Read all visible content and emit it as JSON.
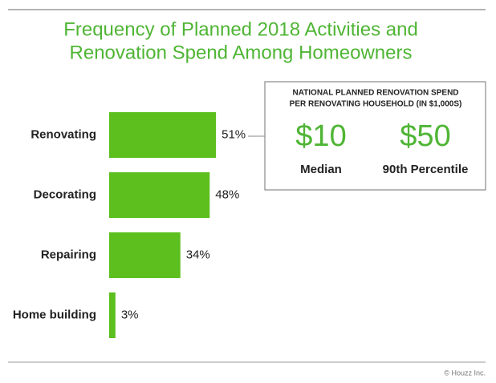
{
  "chart_data": {
    "type": "bar",
    "orientation": "horizontal",
    "title_lines": [
      "Frequency of Planned 2018 Activities and",
      "Renovation Spend Among Homeowners"
    ],
    "categories": [
      "Renovating",
      "Decorating",
      "Repairing",
      "Home building"
    ],
    "values": [
      51,
      48,
      34,
      3
    ],
    "value_labels": [
      "51%",
      "48%",
      "34%",
      "3%"
    ],
    "color": "#5cbf1e",
    "title_color": "#4fb535",
    "callout": {
      "title_lines": [
        "NATIONAL PLANNED RENOVATION SPEND",
        "PER RENOVATING HOUSEHOLD (IN $1,000S)"
      ],
      "stats": [
        {
          "value": 10,
          "label": "$10",
          "name": "Median"
        },
        {
          "value": 50,
          "label": "$50",
          "name": "90th Percentile"
        }
      ]
    },
    "source": "© Houzz Inc."
  }
}
